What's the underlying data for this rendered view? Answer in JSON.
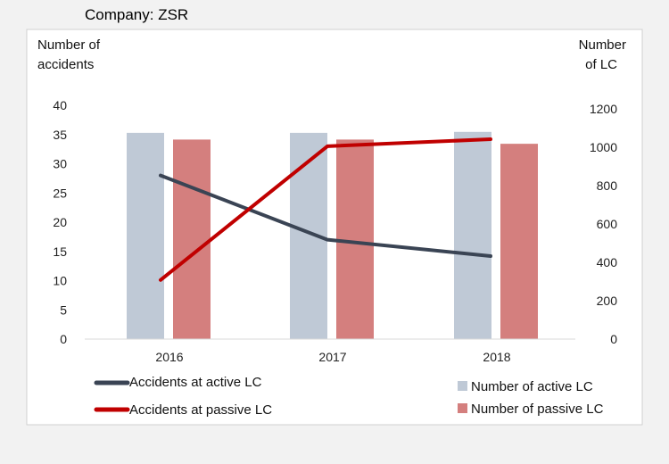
{
  "chart_data": {
    "type": "bar",
    "title": "Company: ZSR",
    "categories": [
      "2016",
      "2017",
      "2018"
    ],
    "y_left": {
      "label_lines": [
        "Number of",
        "accidents"
      ],
      "ticks": [
        "0",
        "5",
        "10",
        "15",
        "20",
        "25",
        "30",
        "35",
        "40"
      ],
      "ylim": [
        0,
        40
      ]
    },
    "y_right": {
      "label_lines": [
        "Number",
        "of LC"
      ],
      "ticks": [
        "0",
        "200",
        "400",
        "600",
        "800",
        "1000",
        "1200"
      ],
      "ylim": [
        0,
        1200
      ]
    },
    "bar_series": [
      {
        "name": "Number of active LC",
        "axis": "right",
        "color": "#bfc9d6",
        "values": [
          1075,
          1075,
          1080
        ]
      },
      {
        "name": "Number of passive LC",
        "axis": "right",
        "color": "#d47f7e",
        "values": [
          1040,
          1040,
          1018
        ]
      }
    ],
    "line_series": [
      {
        "name": "Accidents at active LC",
        "axis": "left",
        "color": "#3a4454",
        "values": [
          28,
          17,
          14.2
        ]
      },
      {
        "name": "Accidents at passive LC",
        "axis": "left",
        "color": "#c00000",
        "values": [
          10.1,
          33,
          34.2
        ]
      }
    ],
    "grid": false
  }
}
